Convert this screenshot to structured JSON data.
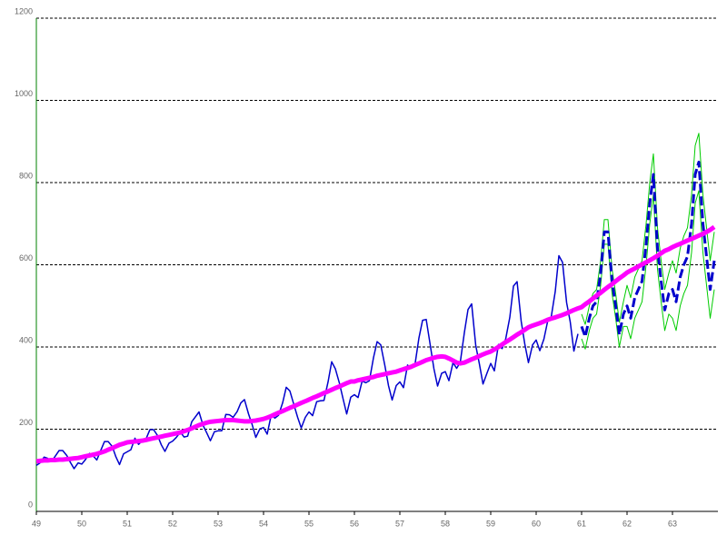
{
  "chart_data": {
    "type": "line",
    "xlim": [
      49,
      64
    ],
    "xticks": [
      49,
      50,
      51,
      52,
      53,
      54,
      55,
      56,
      57,
      58,
      59,
      60,
      61,
      62,
      63
    ],
    "ylim": [
      0,
      1200
    ],
    "yticks": [
      0,
      200,
      400,
      600,
      800,
      1000,
      1200
    ],
    "grid": true,
    "x": [
      49,
      49.08,
      49.17,
      49.25,
      49.33,
      49.42,
      49.5,
      49.58,
      49.67,
      49.75,
      49.83,
      49.92,
      50,
      50.08,
      50.17,
      50.25,
      50.33,
      50.42,
      50.5,
      50.58,
      50.67,
      50.75,
      50.83,
      50.92,
      51,
      51.08,
      51.17,
      51.25,
      51.33,
      51.42,
      51.5,
      51.58,
      51.67,
      51.75,
      51.83,
      51.92,
      52,
      52.08,
      52.17,
      52.25,
      52.33,
      52.42,
      52.5,
      52.58,
      52.67,
      52.75,
      52.83,
      52.92,
      53,
      53.08,
      53.17,
      53.25,
      53.33,
      53.42,
      53.5,
      53.58,
      53.67,
      53.75,
      53.83,
      53.92,
      54,
      54.08,
      54.17,
      54.25,
      54.33,
      54.42,
      54.5,
      54.58,
      54.67,
      54.75,
      54.83,
      54.92,
      55,
      55.08,
      55.17,
      55.25,
      55.33,
      55.42,
      55.5,
      55.58,
      55.67,
      55.75,
      55.83,
      55.92,
      56,
      56.08,
      56.17,
      56.25,
      56.33,
      56.42,
      56.5,
      56.58,
      56.67,
      56.75,
      56.83,
      56.92,
      57,
      57.08,
      57.17,
      57.25,
      57.33,
      57.42,
      57.5,
      57.58,
      57.67,
      57.75,
      57.83,
      57.92,
      58,
      58.08,
      58.17,
      58.25,
      58.33,
      58.42,
      58.5,
      58.58,
      58.67,
      58.75,
      58.83,
      58.92,
      59,
      59.08,
      59.17,
      59.25,
      59.33,
      59.42,
      59.5,
      59.58,
      59.67,
      59.75,
      59.83,
      59.92,
      60,
      60.08,
      60.17,
      60.25,
      60.33,
      60.42,
      60.5,
      60.58,
      60.67,
      60.75,
      60.83,
      60.92,
      61,
      61.08,
      61.17,
      61.25,
      61.33,
      61.42,
      61.5,
      61.58,
      61.67,
      61.75,
      61.83,
      61.92,
      62,
      62.08,
      62.17,
      62.25,
      62.33,
      62.42,
      62.5,
      62.58,
      62.67,
      62.75,
      62.83,
      62.92,
      63,
      63.08,
      63.17,
      63.25,
      63.33,
      63.42,
      63.5,
      63.58,
      63.67,
      63.75,
      63.83,
      63.92
    ],
    "series": [
      {
        "color": "#00cc00",
        "style": "thin",
        "values": [
          null,
          null,
          null,
          null,
          null,
          null,
          null,
          null,
          null,
          null,
          null,
          null,
          null,
          null,
          null,
          null,
          null,
          null,
          null,
          null,
          null,
          null,
          null,
          null,
          null,
          null,
          null,
          null,
          null,
          null,
          null,
          null,
          null,
          null,
          null,
          null,
          null,
          null,
          null,
          null,
          null,
          null,
          null,
          null,
          null,
          null,
          null,
          null,
          null,
          null,
          null,
          null,
          null,
          null,
          null,
          null,
          null,
          null,
          null,
          null,
          null,
          null,
          null,
          null,
          null,
          null,
          null,
          null,
          null,
          null,
          null,
          null,
          null,
          null,
          null,
          null,
          null,
          null,
          null,
          null,
          null,
          null,
          null,
          null,
          null,
          null,
          null,
          null,
          null,
          null,
          null,
          null,
          null,
          null,
          null,
          null,
          null,
          null,
          null,
          null,
          null,
          null,
          null,
          null,
          null,
          null,
          null,
          null,
          null,
          null,
          null,
          null,
          null,
          null,
          null,
          null,
          null,
          null,
          null,
          null,
          null,
          null,
          null,
          null,
          null,
          null,
          null,
          null,
          null,
          null,
          null,
          null,
          null,
          null,
          null,
          null,
          null,
          null,
          null,
          null,
          null,
          null,
          null,
          null,
          480,
          455,
          500,
          530,
          540,
          610,
          710,
          710,
          590,
          530,
          460,
          510,
          550,
          520,
          570,
          590,
          610,
          700,
          800,
          870,
          690,
          610,
          540,
          580,
          610,
          580,
          640,
          670,
          690,
          770,
          890,
          920,
          770,
          690,
          610,
          680
        ]
      },
      {
        "color": "#00cc00",
        "style": "thin",
        "values": [
          null,
          null,
          null,
          null,
          null,
          null,
          null,
          null,
          null,
          null,
          null,
          null,
          null,
          null,
          null,
          null,
          null,
          null,
          null,
          null,
          null,
          null,
          null,
          null,
          null,
          null,
          null,
          null,
          null,
          null,
          null,
          null,
          null,
          null,
          null,
          null,
          null,
          null,
          null,
          null,
          null,
          null,
          null,
          null,
          null,
          null,
          null,
          null,
          null,
          null,
          null,
          null,
          null,
          null,
          null,
          null,
          null,
          null,
          null,
          null,
          null,
          null,
          null,
          null,
          null,
          null,
          null,
          null,
          null,
          null,
          null,
          null,
          null,
          null,
          null,
          null,
          null,
          null,
          null,
          null,
          null,
          null,
          null,
          null,
          null,
          null,
          null,
          null,
          null,
          null,
          null,
          null,
          null,
          null,
          null,
          null,
          null,
          null,
          null,
          null,
          null,
          null,
          null,
          null,
          null,
          null,
          null,
          null,
          null,
          null,
          null,
          null,
          null,
          null,
          null,
          null,
          null,
          null,
          null,
          null,
          null,
          null,
          null,
          null,
          null,
          null,
          null,
          null,
          null,
          null,
          null,
          null,
          null,
          null,
          null,
          null,
          null,
          null,
          null,
          null,
          null,
          null,
          null,
          null,
          420,
          395,
          440,
          470,
          480,
          550,
          650,
          650,
          530,
          470,
          400,
          450,
          450,
          420,
          470,
          490,
          510,
          600,
          700,
          770,
          590,
          510,
          440,
          480,
          470,
          440,
          500,
          530,
          550,
          630,
          750,
          780,
          630,
          550,
          470,
          540
        ]
      },
      {
        "color": "#0000cc",
        "style": "solid",
        "values": [
          112,
          118,
          132,
          129,
          121,
          135,
          148,
          148,
          136,
          119,
          104,
          118,
          115,
          126,
          141,
          135,
          125,
          149,
          170,
          170,
          158,
          133,
          114,
          140,
          145,
          150,
          178,
          163,
          172,
          178,
          199,
          199,
          184,
          162,
          146,
          166,
          171,
          180,
          193,
          181,
          183,
          218,
          230,
          242,
          209,
          191,
          172,
          194,
          196,
          196,
          236,
          235,
          229,
          243,
          264,
          272,
          237,
          211,
          180,
          201,
          204,
          188,
          235,
          227,
          234,
          264,
          302,
          293,
          259,
          229,
          203,
          229,
          242,
          233,
          267,
          269,
          270,
          315,
          364,
          347,
          312,
          274,
          237,
          278,
          284,
          277,
          317,
          313,
          318,
          374,
          413,
          405,
          355,
          306,
          271,
          306,
          315,
          301,
          356,
          348,
          355,
          422,
          465,
          467,
          404,
          347,
          305,
          336,
          340,
          318,
          362,
          348,
          363,
          435,
          491,
          505,
          404,
          359,
          310,
          337,
          360,
          342,
          406,
          396,
          420,
          472,
          548,
          559,
          463,
          407,
          362,
          405,
          417,
          391,
          419,
          461,
          472,
          535,
          622,
          606,
          508,
          461,
          390,
          432,
          null,
          null,
          null,
          null,
          null,
          null,
          null,
          null,
          null,
          null,
          null,
          null,
          null,
          null,
          null,
          null,
          null,
          null,
          null,
          null,
          null,
          null,
          null,
          null,
          null,
          null,
          null,
          null,
          null,
          null,
          null,
          null,
          null,
          null,
          null,
          null
        ]
      },
      {
        "color": "#0000cc",
        "style": "dashed",
        "values": [
          null,
          null,
          null,
          null,
          null,
          null,
          null,
          null,
          null,
          null,
          null,
          null,
          null,
          null,
          null,
          null,
          null,
          null,
          null,
          null,
          null,
          null,
          null,
          null,
          null,
          null,
          null,
          null,
          null,
          null,
          null,
          null,
          null,
          null,
          null,
          null,
          null,
          null,
          null,
          null,
          null,
          null,
          null,
          null,
          null,
          null,
          null,
          null,
          null,
          null,
          null,
          null,
          null,
          null,
          null,
          null,
          null,
          null,
          null,
          null,
          null,
          null,
          null,
          null,
          null,
          null,
          null,
          null,
          null,
          null,
          null,
          null,
          null,
          null,
          null,
          null,
          null,
          null,
          null,
          null,
          null,
          null,
          null,
          null,
          null,
          null,
          null,
          null,
          null,
          null,
          null,
          null,
          null,
          null,
          null,
          null,
          null,
          null,
          null,
          null,
          null,
          null,
          null,
          null,
          null,
          null,
          null,
          null,
          null,
          null,
          null,
          null,
          null,
          null,
          null,
          null,
          null,
          null,
          null,
          null,
          null,
          null,
          null,
          null,
          null,
          null,
          null,
          null,
          null,
          null,
          null,
          null,
          null,
          null,
          null,
          null,
          null,
          null,
          null,
          null,
          null,
          null,
          null,
          null,
          450,
          425,
          470,
          500,
          510,
          580,
          680,
          680,
          560,
          500,
          430,
          480,
          500,
          470,
          520,
          540,
          560,
          650,
          750,
          820,
          640,
          560,
          490,
          530,
          540,
          510,
          570,
          600,
          620,
          700,
          820,
          850,
          700,
          620,
          540,
          610
        ]
      },
      {
        "color": "#ff00ff",
        "style": "thick",
        "values": [
          122,
          123,
          124,
          124,
          125,
          125,
          126,
          126,
          127,
          128,
          129,
          130,
          132,
          134,
          136,
          138,
          140,
          143,
          146,
          150,
          154,
          158,
          162,
          165,
          168,
          169,
          170,
          171,
          172,
          174,
          176,
          178,
          180,
          182,
          184,
          186,
          188,
          190,
          192,
          195,
          198,
          202,
          206,
          210,
          213,
          216,
          218,
          219,
          220,
          221,
          222,
          222,
          222,
          221,
          220,
          219,
          219,
          220,
          221,
          223,
          225,
          228,
          232,
          236,
          240,
          244,
          248,
          252,
          256,
          260,
          264,
          268,
          272,
          276,
          280,
          284,
          288,
          292,
          296,
          300,
          304,
          308,
          312,
          316,
          316,
          319,
          321,
          323,
          325,
          327,
          330,
          332,
          334,
          336,
          338,
          340,
          343,
          346,
          349,
          352,
          356,
          360,
          364,
          368,
          371,
          374,
          376,
          377,
          376,
          372,
          367,
          362,
          360,
          362,
          366,
          370,
          374,
          378,
          382,
          386,
          389,
          394,
          400,
          406,
          412,
          418,
          424,
          430,
          436,
          442,
          448,
          452,
          455,
          458,
          462,
          466,
          469,
          472,
          475,
          478,
          482,
          486,
          490,
          494,
          497,
          504,
          511,
          518,
          525,
          532,
          539,
          546,
          553,
          560,
          567,
          574,
          581,
          586,
          591,
          596,
          601,
          606,
          611,
          616,
          622,
          628,
          634,
          638,
          643,
          647,
          651,
          655,
          659,
          663,
          667,
          671,
          675,
          680,
          685,
          692
        ]
      }
    ]
  }
}
